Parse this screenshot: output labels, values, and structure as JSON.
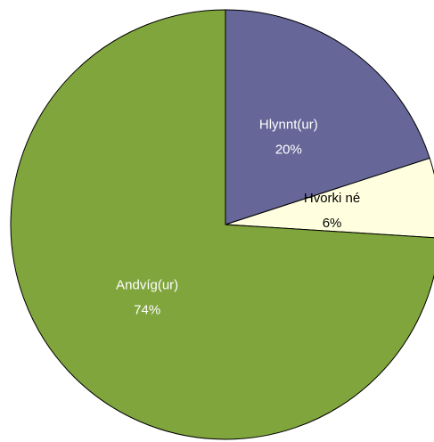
{
  "chart_data": {
    "type": "pie",
    "categories": [
      "Hlynnt(ur)",
      "Hvorki né",
      "Andvíg(ur)"
    ],
    "values": [
      20,
      6,
      74
    ],
    "value_labels": [
      "20%",
      "6%",
      "74%"
    ],
    "colors": [
      "#666699",
      "#ffffe0",
      "#80a53c"
    ]
  }
}
